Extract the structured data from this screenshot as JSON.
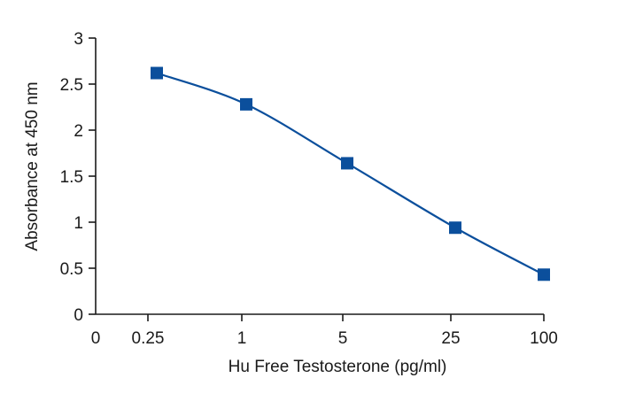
{
  "chart_data": {
    "type": "scatter",
    "xlabel": "Hu Free Testosterone (pg/ml)",
    "ylabel": "Absorbance at 450 nm",
    "x_tick_labels": [
      "0",
      "0.25",
      "1",
      "5",
      "25",
      "100"
    ],
    "y_tick_labels": [
      "0",
      "0.5",
      "1",
      "1.5",
      "2",
      "2.5",
      "3"
    ],
    "ylim": [
      0,
      3
    ],
    "x_scale": "categorical",
    "grid": false,
    "legend": "none",
    "series": [
      {
        "x": [
          "0.25",
          "1",
          "5",
          "25",
          "100"
        ],
        "values": [
          2.62,
          2.28,
          1.64,
          0.94,
          0.43
        ],
        "marker": "square",
        "fit_line": "smooth"
      }
    ],
    "colors": {
      "series": "#0b4f9c",
      "axis": "#1a1a1a"
    }
  }
}
